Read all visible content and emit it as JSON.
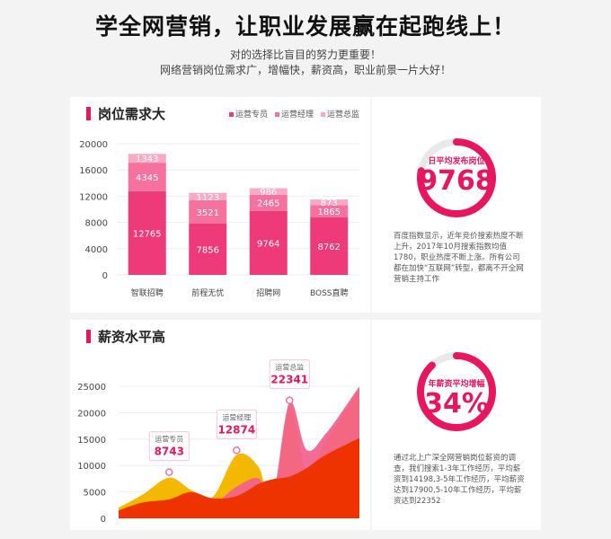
{
  "hero": {
    "title": "学全网营销，让职业发展赢在起跑线上！",
    "line1": "对的选择比盲目的努力更重要！",
    "line2": "网络营销岗位需求广，增幅快，薪资高，职业前景一片大好！"
  },
  "demand": {
    "title": "岗位需求大",
    "colors": {
      "base": "#ee3a78",
      "mid": "#f4729d",
      "top": "#f9a9c3"
    },
    "side": {
      "ring_label": "日平均发布岗位",
      "ring_value": "9768",
      "ring_percent": 78,
      "description": "百度指数显示，近年竞价搜索热度不断上升，2017年10月搜索指数均值1780，职业热度不断上涨。所有公司都在加快“互联网”转型，都离不开全网营销主持工作"
    }
  },
  "salary": {
    "title": "薪资水平高",
    "side": {
      "ring_label": "年薪资平均增幅",
      "ring_value": "34%",
      "ring_percent": 88,
      "description": "通过北上广深全网营销岗位薪资的调查，我们搜索1-3年工作经历，平均薪资到14198,3-5年工作经历，平均薪资达到17900,5-10年工作经历，平均薪资达到22352"
    }
  },
  "chart_data": [
    {
      "type": "bar",
      "stacked": true,
      "title": "岗位需求大",
      "categories": [
        "智联招聘",
        "前程无忧",
        "招聘网",
        "BOSS直聘"
      ],
      "series": [
        {
          "name": "运营专员",
          "values": [
            12765,
            7856,
            9764,
            8762
          ],
          "color": "#ee3a78"
        },
        {
          "name": "运营经理",
          "values": [
            4345,
            3521,
            2465,
            1865
          ],
          "color": "#f4729d"
        },
        {
          "name": "运营总监",
          "values": [
            1343,
            1123,
            986,
            873
          ],
          "color": "#f9a9c3"
        }
      ],
      "ylim": [
        0,
        20000
      ],
      "yticks": [
        "0",
        "4000",
        "8000",
        "12000",
        "16000",
        "20000"
      ],
      "grid": true,
      "legend": "top-right"
    },
    {
      "type": "area",
      "title": "薪资水平高",
      "ylim": [
        0,
        25000
      ],
      "yticks": [
        "0",
        "5000",
        "10000",
        "15000",
        "20000",
        "25000"
      ],
      "grid": true,
      "annotations": [
        {
          "label": "运营专员",
          "value": "8743",
          "x": 0.21,
          "y": 8743
        },
        {
          "label": "运营经理",
          "value": "12874",
          "x": 0.49,
          "y": 12874
        },
        {
          "label": "运营总监",
          "value": "22341",
          "x": 0.71,
          "y": 22341
        }
      ],
      "series": [
        {
          "color": "#f5b800",
          "x": [
            0,
            0.1,
            0.21,
            0.3,
            0.39,
            0.49,
            0.58,
            0.64,
            0.71,
            0.78,
            0.86,
            1
          ],
          "values": [
            2000,
            4500,
            7700,
            5400,
            4000,
            12000,
            9800,
            3000,
            21200,
            9000,
            14500,
            24600
          ]
        },
        {
          "color": "#f25f8e",
          "x": [
            0,
            0.1,
            0.21,
            0.3,
            0.39,
            0.49,
            0.58,
            0.64,
            0.71,
            0.78,
            0.86,
            1
          ],
          "values": [
            0,
            1500,
            3500,
            4500,
            2800,
            6000,
            7600,
            4200,
            22000,
            13000,
            16000,
            25000
          ]
        },
        {
          "color": "#ee3300",
          "x": [
            0,
            0.1,
            0.21,
            0.3,
            0.39,
            0.49,
            0.58,
            0.64,
            0.71,
            0.78,
            0.86,
            1
          ],
          "values": [
            1500,
            3000,
            3600,
            5000,
            3800,
            4200,
            6500,
            7400,
            7900,
            9500,
            12000,
            15200
          ]
        }
      ]
    }
  ]
}
